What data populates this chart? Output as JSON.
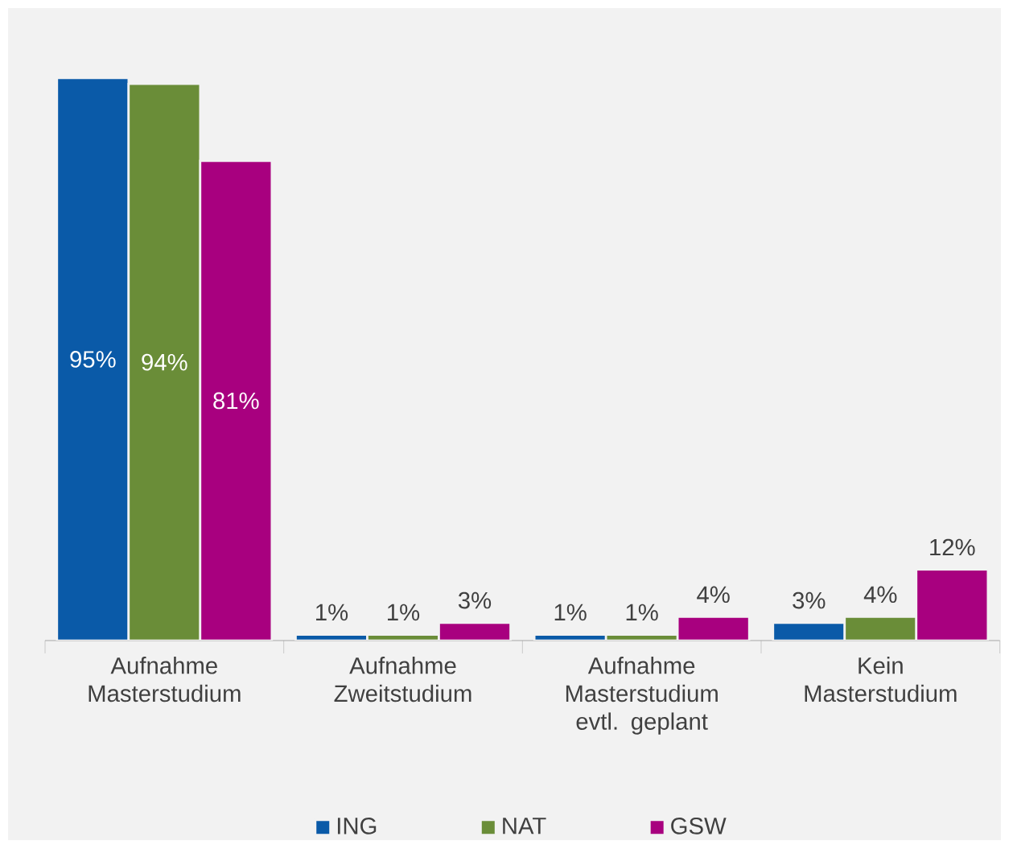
{
  "chart_data": {
    "type": "bar",
    "categories": [
      "Aufnahme Masterstudium",
      "Aufnahme Zweitstudium",
      "Aufnahme Masterstudium evtl. geplant",
      "Kein Masterstudium"
    ],
    "series": [
      {
        "name": "ING",
        "color": "#0a5aa8",
        "values": [
          95,
          1,
          1,
          3
        ],
        "value_labels": [
          "95%",
          "1%",
          "1%",
          "3%"
        ]
      },
      {
        "name": "NAT",
        "color": "#6a8d38",
        "values": [
          94,
          1,
          1,
          4
        ],
        "value_labels": [
          "94%",
          "1%",
          "1%",
          "4%"
        ]
      },
      {
        "name": "GSW",
        "color": "#a8007f",
        "values": [
          81,
          3,
          4,
          12
        ],
        "value_labels": [
          "81%",
          "3%",
          "4%",
          "12%"
        ]
      }
    ],
    "legend": "bottom"
  }
}
